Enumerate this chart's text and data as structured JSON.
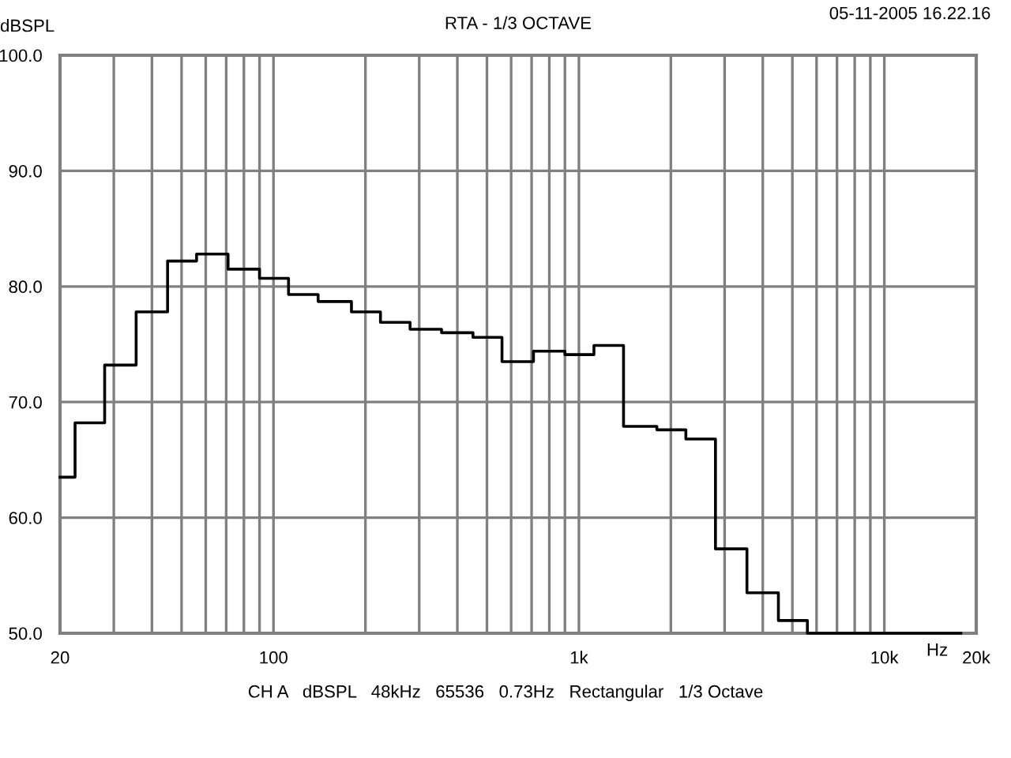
{
  "chart_data": {
    "type": "step",
    "title": "RTA - 1/3 OCTAVE",
    "xlabel": "Hz",
    "ylabel": "dBSPL",
    "annotations": [
      "05-11-2005 16.22.16",
      "CH A   dBSPL   48kHz   65536   0.73Hz   Rectangular   1/3 Octave"
    ],
    "x": [
      20,
      22.4,
      28,
      35.5,
      45,
      56,
      71,
      90,
      112,
      140,
      180,
      224,
      280,
      355,
      450,
      560,
      710,
      900,
      1120,
      1400,
      1800,
      2240,
      2800,
      3550,
      4500,
      5600,
      7100,
      9000,
      11200,
      14000,
      17800
    ],
    "series": [
      {
        "color": "#000000",
        "values": [
          63.5,
          68.2,
          73.2,
          77.8,
          82.2,
          82.8,
          81.5,
          80.7,
          79.3,
          78.7,
          77.8,
          76.9,
          76.3,
          76.0,
          75.6,
          73.5,
          74.4,
          74.1,
          74.9,
          67.9,
          67.6,
          66.8,
          57.3,
          53.5,
          51.1,
          50,
          50,
          50,
          50,
          50,
          50
        ]
      }
    ],
    "log": "x",
    "xlim": [
      20,
      20000
    ],
    "ylim": [
      50,
      100
    ],
    "xticks": [
      20,
      {
        "value": 30,
        "label": null
      },
      {
        "value": 40,
        "label": null
      },
      {
        "value": 50,
        "label": null
      },
      {
        "value": 60,
        "label": null
      },
      {
        "value": 70,
        "label": null
      },
      {
        "value": 80,
        "label": null
      },
      {
        "value": 90,
        "label": null
      },
      100,
      {
        "value": 200,
        "label": null
      },
      {
        "value": 300,
        "label": null
      },
      {
        "value": 400,
        "label": null
      },
      {
        "value": 500,
        "label": null
      },
      {
        "value": 600,
        "label": null
      },
      {
        "value": 700,
        "label": null
      },
      {
        "value": 800,
        "label": null
      },
      {
        "value": 900,
        "label": null
      },
      {
        "value": 1000,
        "label": "1k"
      },
      {
        "value": 2000,
        "label": null
      },
      {
        "value": 3000,
        "label": null
      },
      {
        "value": 4000,
        "label": null
      },
      {
        "value": 5000,
        "label": null
      },
      {
        "value": 6000,
        "label": null
      },
      {
        "value": 7000,
        "label": null
      },
      {
        "value": 8000,
        "label": null
      },
      {
        "value": 9000,
        "label": null
      },
      {
        "value": 10000,
        "label": "10k"
      },
      {
        "value": 20000,
        "label": "20k"
      }
    ],
    "yticks": [
      {
        "value": 50,
        "label": "50.0"
      },
      {
        "value": 60,
        "label": "60.0"
      },
      {
        "value": 70,
        "label": "70.0"
      },
      {
        "value": 80,
        "label": "80.0"
      },
      {
        "value": 90,
        "label": "90.0"
      },
      {
        "value": 100,
        "label": "100.0"
      }
    ],
    "grid": true,
    "line_style": "solid"
  }
}
